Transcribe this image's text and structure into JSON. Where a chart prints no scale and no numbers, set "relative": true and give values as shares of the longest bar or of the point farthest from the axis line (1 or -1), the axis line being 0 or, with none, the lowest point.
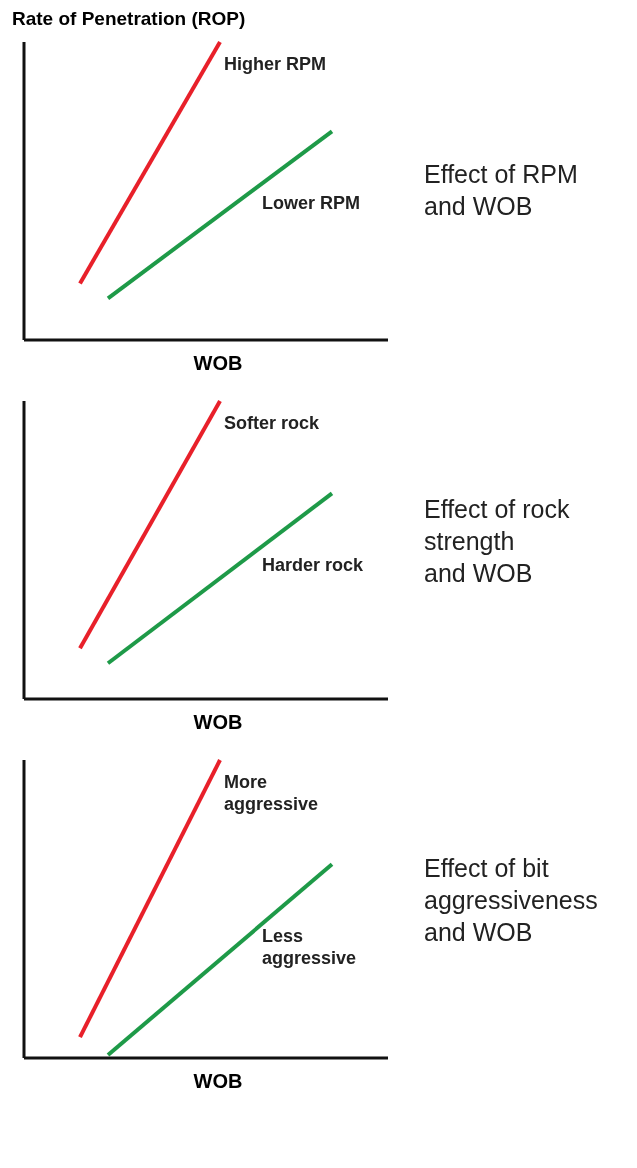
{
  "chart_data": [
    {
      "type": "line",
      "title": "Rate of Penetration (ROP)",
      "xlabel": "WOB",
      "relative": true,
      "categories": [
        null,
        null,
        null,
        null,
        null,
        null,
        null,
        null,
        null,
        null,
        null,
        null,
        null,
        null
      ],
      "annotations": [
        "Effect of RPM\nand WOB"
      ],
      "series": [
        {
          "name": "Higher RPM",
          "color": "#e8202a",
          "values": [
            null,
            null,
            0.19,
            null,
            null,
            null,
            null,
            1,
            null,
            null,
            null,
            null,
            null,
            null
          ]
        },
        {
          "name": "Lower RPM",
          "color": "#1e9a48",
          "values": [
            null,
            null,
            null,
            0.14,
            null,
            null,
            null,
            null,
            null,
            null,
            null,
            0.7,
            null,
            null
          ]
        }
      ]
    },
    {
      "type": "line",
      "xlabel": "WOB",
      "relative": true,
      "categories": [
        null,
        null,
        null,
        null,
        null,
        null,
        null,
        null,
        null,
        null,
        null,
        null,
        null,
        null
      ],
      "annotations": [
        "Effect of rock\nstrength\nand WOB"
      ],
      "series": [
        {
          "name": "Softer rock",
          "color": "#e8202a",
          "values": [
            null,
            null,
            0.17,
            null,
            null,
            null,
            null,
            1,
            null,
            null,
            null,
            null,
            null,
            null
          ]
        },
        {
          "name": "Harder rock",
          "color": "#1e9a48",
          "values": [
            null,
            null,
            null,
            0.12,
            null,
            null,
            null,
            null,
            null,
            null,
            null,
            0.69,
            null,
            null
          ]
        }
      ]
    },
    {
      "type": "line",
      "xlabel": "WOB",
      "relative": true,
      "categories": [
        null,
        null,
        null,
        null,
        null,
        null,
        null,
        null,
        null,
        null,
        null,
        null,
        null,
        null
      ],
      "annotations": [
        "Effect of bit\naggressiveness\nand WOB"
      ],
      "series": [
        {
          "name": "More\naggressive",
          "color": "#e8202a",
          "values": [
            null,
            null,
            0.07,
            null,
            null,
            null,
            null,
            1,
            null,
            null,
            null,
            null,
            null,
            null
          ]
        },
        {
          "name": "Less\naggressive",
          "color": "#1e9a48",
          "values": [
            null,
            null,
            null,
            0.01,
            null,
            null,
            null,
            null,
            null,
            null,
            null,
            0.65,
            null,
            null
          ]
        }
      ]
    }
  ]
}
